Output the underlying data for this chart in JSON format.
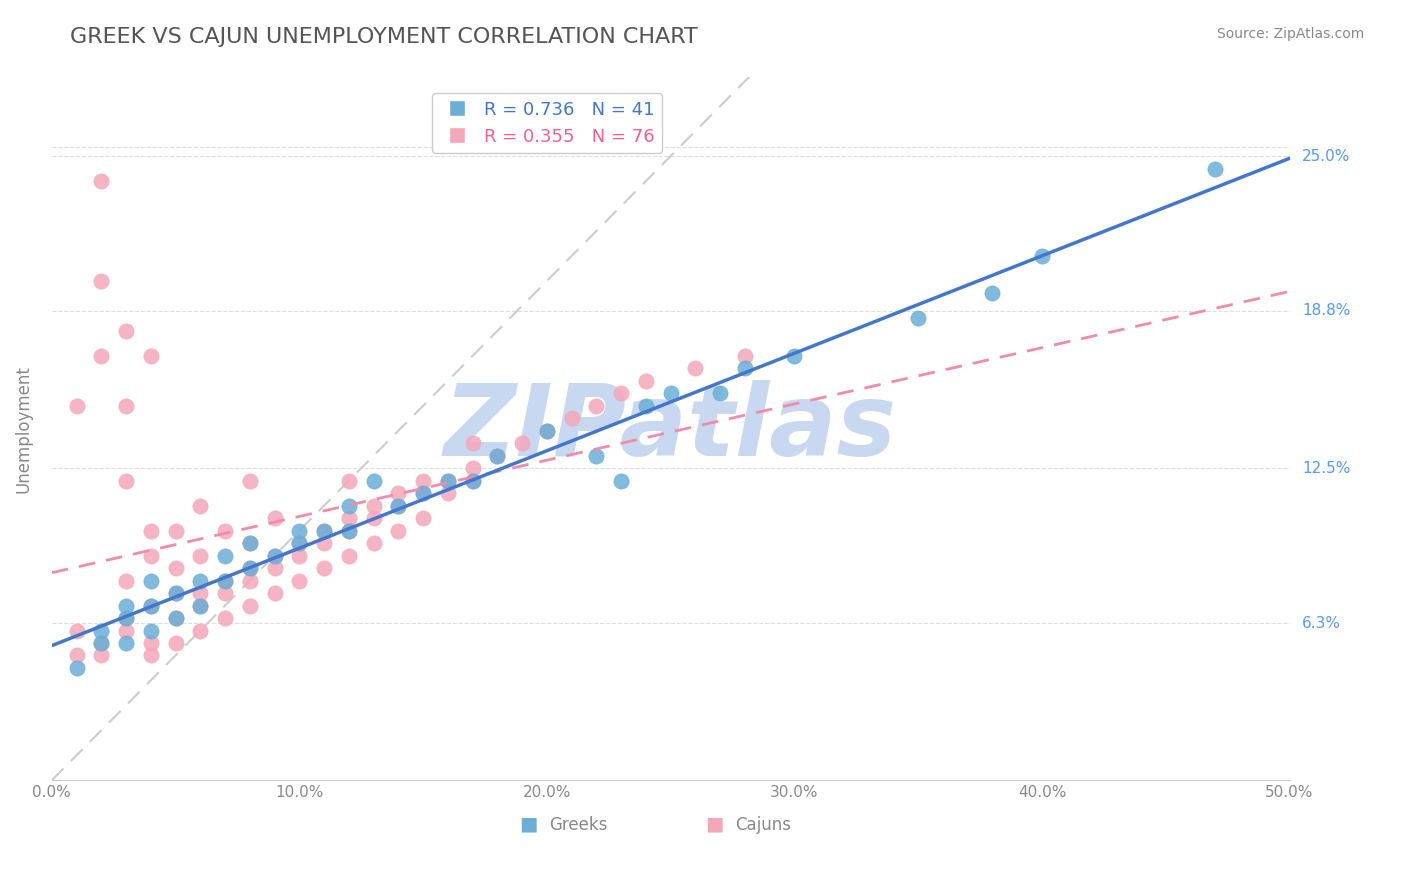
{
  "title": "GREEK VS CAJUN UNEMPLOYMENT CORRELATION CHART",
  "source_text": "Source: ZipAtlas.com",
  "ylabel": "Unemployment",
  "xlim": [
    0,
    0.5
  ],
  "ylim": [
    0,
    0.2815
  ],
  "xticks": [
    0.0,
    0.1,
    0.2,
    0.3,
    0.4,
    0.5
  ],
  "xtick_labels": [
    "0.0%",
    "10.0%",
    "20.0%",
    "30.0%",
    "40.0%",
    "50.0%"
  ],
  "ytick_positions": [
    0.063,
    0.125,
    0.188,
    0.25
  ],
  "ytick_labels": [
    "6.3%",
    "12.5%",
    "18.8%",
    "25.0%"
  ],
  "greek_color": "#6baed6",
  "cajun_color": "#f4a7b9",
  "greek_R": 0.736,
  "greek_N": 41,
  "cajun_R": 0.355,
  "cajun_N": 76,
  "greek_line_color": "#4477cc",
  "cajun_line_color": "#f48aaa",
  "ref_line_color": "#cccccc",
  "watermark": "ZIPatlas",
  "watermark_color": "#c8d8f0",
  "background_color": "#ffffff",
  "grid_color": "#dddddd",
  "title_color": "#555555",
  "legend_text_color_greek": "#4477cc",
  "legend_text_color_cajun": "#f06090",
  "greek_points_x": [
    0.01,
    0.02,
    0.02,
    0.03,
    0.03,
    0.03,
    0.04,
    0.04,
    0.04,
    0.05,
    0.05,
    0.06,
    0.06,
    0.07,
    0.07,
    0.08,
    0.08,
    0.09,
    0.1,
    0.1,
    0.11,
    0.12,
    0.12,
    0.13,
    0.14,
    0.15,
    0.16,
    0.17,
    0.18,
    0.2,
    0.22,
    0.23,
    0.24,
    0.25,
    0.27,
    0.28,
    0.3,
    0.35,
    0.38,
    0.4,
    0.47
  ],
  "greek_points_y": [
    0.045,
    0.055,
    0.06,
    0.055,
    0.065,
    0.07,
    0.06,
    0.07,
    0.08,
    0.065,
    0.075,
    0.07,
    0.08,
    0.08,
    0.09,
    0.085,
    0.095,
    0.09,
    0.095,
    0.1,
    0.1,
    0.1,
    0.11,
    0.12,
    0.11,
    0.115,
    0.12,
    0.12,
    0.13,
    0.14,
    0.13,
    0.12,
    0.15,
    0.155,
    0.155,
    0.165,
    0.17,
    0.185,
    0.195,
    0.21,
    0.245
  ],
  "cajun_points_x": [
    0.01,
    0.01,
    0.01,
    0.02,
    0.02,
    0.02,
    0.02,
    0.03,
    0.03,
    0.03,
    0.03,
    0.03,
    0.04,
    0.04,
    0.04,
    0.04,
    0.04,
    0.05,
    0.05,
    0.05,
    0.05,
    0.06,
    0.06,
    0.06,
    0.06,
    0.07,
    0.07,
    0.07,
    0.08,
    0.08,
    0.08,
    0.08,
    0.09,
    0.09,
    0.09,
    0.1,
    0.1,
    0.11,
    0.11,
    0.12,
    0.12,
    0.12,
    0.13,
    0.13,
    0.14,
    0.14,
    0.15,
    0.15,
    0.16,
    0.17,
    0.17,
    0.18,
    0.19,
    0.2,
    0.21,
    0.22,
    0.23,
    0.24,
    0.26,
    0.28,
    0.02,
    0.03,
    0.04,
    0.05,
    0.06,
    0.07,
    0.08,
    0.09,
    0.1,
    0.11,
    0.12,
    0.13,
    0.14,
    0.15,
    0.16,
    0.17
  ],
  "cajun_points_y": [
    0.05,
    0.06,
    0.15,
    0.055,
    0.17,
    0.2,
    0.24,
    0.065,
    0.08,
    0.12,
    0.15,
    0.18,
    0.05,
    0.07,
    0.09,
    0.1,
    0.17,
    0.055,
    0.075,
    0.085,
    0.1,
    0.06,
    0.075,
    0.09,
    0.11,
    0.065,
    0.08,
    0.1,
    0.07,
    0.085,
    0.095,
    0.12,
    0.075,
    0.09,
    0.105,
    0.08,
    0.095,
    0.085,
    0.1,
    0.09,
    0.105,
    0.12,
    0.095,
    0.11,
    0.1,
    0.115,
    0.105,
    0.12,
    0.115,
    0.12,
    0.135,
    0.13,
    0.135,
    0.14,
    0.145,
    0.15,
    0.155,
    0.16,
    0.165,
    0.17,
    0.05,
    0.06,
    0.055,
    0.065,
    0.07,
    0.075,
    0.08,
    0.085,
    0.09,
    0.095,
    0.1,
    0.105,
    0.11,
    0.115,
    0.12,
    0.125
  ]
}
